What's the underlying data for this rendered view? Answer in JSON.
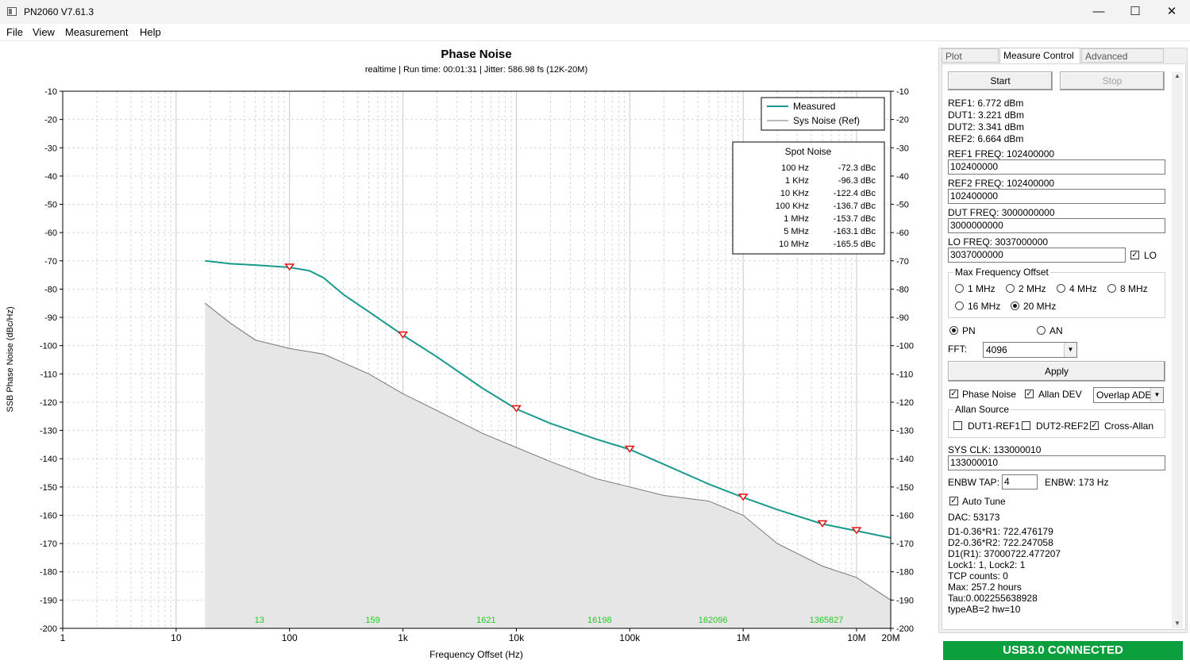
{
  "window": {
    "title": "PN2060 V7.61.3",
    "minimize_glyph": "—",
    "maximize_glyph": "☐",
    "close_glyph": "✕"
  },
  "menu": [
    "File",
    "View",
    "Measurement",
    "Help"
  ],
  "plot": {
    "title": "Phase Noise",
    "subtitle": "realtime  | Run time: 00:01:31  | Jitter: 586.98 fs (12K-20M)",
    "ylabel": "SSB Phase Noise (dBc/Hz)",
    "xlabel": "Frequency Offset (Hz)",
    "legend": [
      "Measured",
      "Sys Noise (Ref)"
    ],
    "spot_title": "Spot Noise",
    "spot_noise": [
      {
        "freq": "100 Hz",
        "val": "-72.3 dBc"
      },
      {
        "freq": "1 KHz",
        "val": "-96.3 dBc"
      },
      {
        "freq": "10 KHz",
        "val": "-122.4 dBc"
      },
      {
        "freq": "100 KHz",
        "val": "-136.7 dBc"
      },
      {
        "freq": "1 MHz",
        "val": "-153.7 dBc"
      },
      {
        "freq": "5 MHz",
        "val": "-163.1 dBc"
      },
      {
        "freq": "10 MHz",
        "val": "-165.5 dBc"
      }
    ],
    "counts": [
      "13",
      "159",
      "1621",
      "16198",
      "162096",
      "1365827"
    ]
  },
  "chart_data": {
    "type": "line",
    "title": "Phase Noise",
    "xlabel": "Frequency Offset (Hz)",
    "ylabel": "SSB Phase Noise (dBc/Hz)",
    "xscale": "log",
    "xlim": [
      1,
      20000000
    ],
    "ylim": [
      -200,
      -10
    ],
    "x_ticks": [
      1,
      10,
      100,
      1000,
      10000,
      100000,
      1000000,
      10000000,
      20000000
    ],
    "x_tick_labels": [
      "1",
      "10",
      "100",
      "1k",
      "10k",
      "100k",
      "1M",
      "10M",
      "20M"
    ],
    "y_ticks": [
      -10,
      -20,
      -30,
      -40,
      -50,
      -60,
      -70,
      -80,
      -90,
      -100,
      -110,
      -120,
      -130,
      -140,
      -150,
      -160,
      -170,
      -180,
      -190,
      -200
    ],
    "grid": true,
    "legend_position": "top-right",
    "colors": {
      "measured": "#1a9a8c",
      "ref": "#777777",
      "ref_fill": "#e6e6e6",
      "marker": "#e01010",
      "counts": "#22cc22"
    },
    "series": [
      {
        "name": "Measured",
        "x": [
          18,
          30,
          50,
          100,
          150,
          200,
          300,
          500,
          1000,
          2000,
          5000,
          10000,
          20000,
          50000,
          100000,
          200000,
          500000,
          1000000,
          2000000,
          5000000,
          10000000,
          20000000
        ],
        "values": [
          -70,
          -71,
          -71.5,
          -72.3,
          -73.5,
          -76,
          -82,
          -88,
          -96.3,
          -104,
          -115,
          -122.4,
          -127.5,
          -133,
          -136.7,
          -142,
          -149,
          -153.7,
          -158,
          -163.1,
          -165.5,
          -168
        ]
      },
      {
        "name": "Sys Noise (Ref)",
        "x": [
          18,
          30,
          50,
          100,
          200,
          500,
          1000,
          2000,
          5000,
          10000,
          20000,
          50000,
          100000,
          200000,
          500000,
          1000000,
          2000000,
          5000000,
          10000000,
          20000000
        ],
        "values": [
          -85,
          -92,
          -98,
          -101,
          -103,
          -110,
          -117,
          -123,
          -131,
          -136,
          -141,
          -147,
          -150,
          -153,
          -155,
          -160,
          -170,
          -178,
          -182,
          -190
        ]
      }
    ],
    "markers_x": [
      100,
      1000,
      10000,
      100000,
      1000000,
      5000000,
      10000000
    ],
    "markers_y": [
      -72.3,
      -96.3,
      -122.4,
      -136.7,
      -153.7,
      -163.1,
      -165.5
    ],
    "counts_x": [
      100,
      1000,
      10000,
      100000,
      1000000,
      10000000
    ],
    "counts_labels": [
      "13",
      "159",
      "1621",
      "16198",
      "162096",
      "1365827"
    ]
  },
  "tabs": [
    "Plot Control",
    "Measure Control",
    "Advanced Control"
  ],
  "controls": {
    "start": "Start",
    "stop": "Stop",
    "ref1": "REF1: 6.772 dBm",
    "dut1": "DUT1: 3.221 dBm",
    "dut2": "DUT2: 3.341 dBm",
    "ref2": "REF2: 6.664 dBm",
    "ref1_freq_label": "REF1 FREQ: 102400000",
    "ref1_freq": "102400000",
    "ref2_freq_label": "REF2 FREQ: 102400000",
    "ref2_freq": "102400000",
    "dut_freq_label": "DUT  FREQ: 3000000000",
    "dut_freq": "3000000000",
    "lo_freq_label": "LO FREQ: 3037000000",
    "lo_freq": "3037000000",
    "lo_label": "LO",
    "max_freq_group": "Max Frequency Offset",
    "max_freq_options": [
      "1 MHz",
      "2 MHz",
      "4 MHz",
      "8 MHz",
      "16 MHz",
      "20 MHz"
    ],
    "pn": "PN",
    "an": "AN",
    "fft_label": "FFT:",
    "fft_value": "4096",
    "apply": "Apply",
    "phase_noise": "Phase Noise",
    "allan_dev": "Allan DEV",
    "overlay_value": "Overlap ADEV",
    "allan_source_group": "Allan Source",
    "dut1_ref1": "DUT1-REF1",
    "dut2_ref2": "DUT2-REF2",
    "cross_allan": "Cross-Allan",
    "sys_clk_label": "SYS CLK: 133000010",
    "sys_clk": "133000010",
    "enbw_tap_label": "ENBW TAP:",
    "enbw_tap": "4",
    "enbw": "ENBW: 173 Hz",
    "auto_tune": "Auto Tune",
    "dac": "DAC: 53173",
    "d1": "D1-0.36*R1: 722.476179",
    "d2": "D2-0.36*R2: 722.247058",
    "d1r1": "D1(R1): 37000722.477207",
    "lock": "Lock1: 1, Lock2: 1",
    "tcp": "TCP counts: 0",
    "max": "Max: 257.2 hours",
    "tau": "Tau:0.002255638928",
    "typeab": "typeAB=2  hw=10"
  },
  "status": "USB3.0 CONNECTED"
}
